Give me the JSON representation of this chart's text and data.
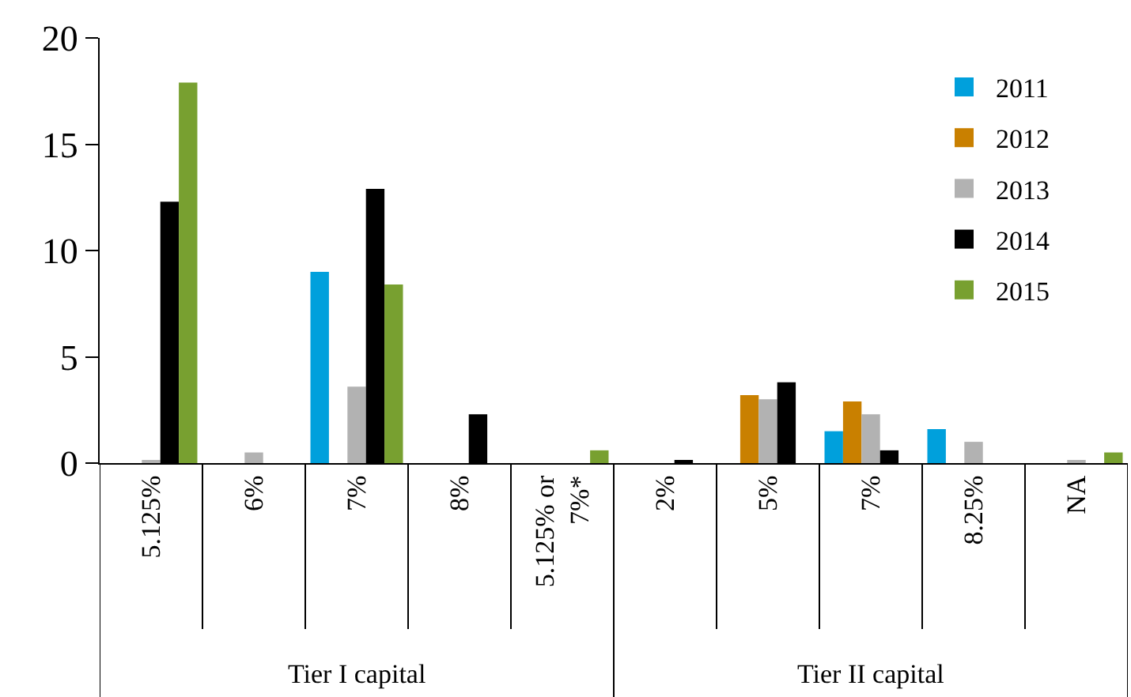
{
  "chart_data": {
    "type": "bar",
    "categories": [
      "5.125%",
      "6%",
      "7%",
      "8%",
      "5.125% or 7%*",
      "2%",
      "5%",
      "7%",
      "8.25%",
      "NA"
    ],
    "series": [
      {
        "name": "2011",
        "color": "#00a0dc",
        "values": [
          null,
          null,
          9.0,
          null,
          null,
          null,
          null,
          1.5,
          1.6,
          null
        ]
      },
      {
        "name": "2012",
        "color": "#c98000",
        "values": [
          null,
          null,
          null,
          null,
          null,
          null,
          3.2,
          2.9,
          null,
          null
        ]
      },
      {
        "name": "2013",
        "color": "#b2b2b2",
        "values": [
          0.1,
          0.5,
          3.6,
          null,
          null,
          null,
          3.0,
          2.3,
          1.0,
          0.1
        ]
      },
      {
        "name": "2014",
        "color": "#000000",
        "values": [
          12.3,
          null,
          12.9,
          2.3,
          null,
          0.1,
          3.8,
          0.6,
          null,
          null
        ]
      },
      {
        "name": "2015",
        "color": "#78a030",
        "values": [
          17.9,
          null,
          8.4,
          null,
          0.6,
          null,
          null,
          null,
          null,
          0.5
        ]
      }
    ],
    "annotations": [
      "Tier I capital",
      "Tier II capital"
    ],
    "ylim": [
      0,
      20
    ],
    "yticks": [
      0,
      5,
      10,
      15,
      20
    ],
    "grid": false,
    "legend": "top right"
  }
}
